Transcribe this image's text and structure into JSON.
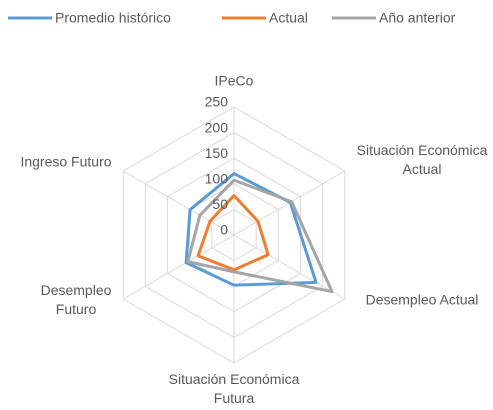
{
  "chart_data": {
    "type": "radar",
    "categories": [
      "IPeCo",
      "Situación Económica Actual",
      "Desempleo Actual",
      "Situación Económica Futura",
      "Desempleo Futuro",
      "Ingreso Futuro"
    ],
    "series": [
      {
        "name": "Promedio histórico",
        "color": "#5b9bd5",
        "values": [
          120,
          127,
          185,
          98,
          108,
          99
        ]
      },
      {
        "name": "Actual",
        "color": "#ed7d31",
        "values": [
          77,
          54,
          77,
          68,
          81,
          54
        ]
      },
      {
        "name": "Año anterior",
        "color": "#a5a5a5",
        "values": [
          107,
          130,
          221,
          72,
          104,
          77
        ]
      }
    ],
    "ylim": [
      0,
      250
    ],
    "yticks": [
      0,
      50,
      100,
      150,
      200,
      250
    ],
    "grid": true,
    "legend": "top"
  }
}
